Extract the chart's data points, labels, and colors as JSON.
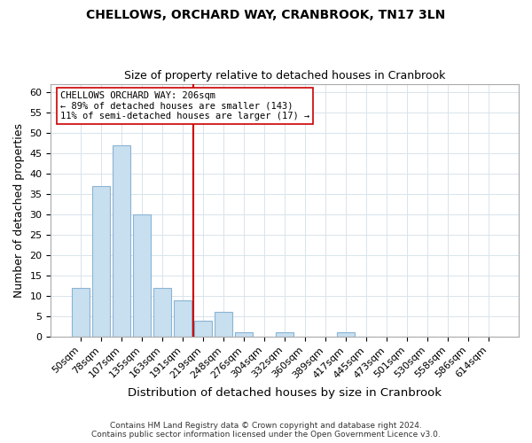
{
  "title": "CHELLOWS, ORCHARD WAY, CRANBROOK, TN17 3LN",
  "subtitle": "Size of property relative to detached houses in Cranbrook",
  "xlabel": "Distribution of detached houses by size in Cranbrook",
  "ylabel": "Number of detached properties",
  "categories": [
    "50sqm",
    "78sqm",
    "107sqm",
    "135sqm",
    "163sqm",
    "191sqm",
    "219sqm",
    "248sqm",
    "276sqm",
    "304sqm",
    "332sqm",
    "360sqm",
    "389sqm",
    "417sqm",
    "445sqm",
    "473sqm",
    "501sqm",
    "530sqm",
    "558sqm",
    "586sqm",
    "614sqm"
  ],
  "values": [
    12,
    37,
    47,
    30,
    12,
    9,
    4,
    6,
    1,
    0,
    1,
    0,
    0,
    1,
    0,
    0,
    0,
    0,
    0,
    0,
    0
  ],
  "bar_color": "#c8dff0",
  "bar_edge_color": "#8ab4d4",
  "vline_color": "#cc0000",
  "annotation_line1": "CHELLOWS ORCHARD WAY: 206sqm",
  "annotation_line2": "← 89% of detached houses are smaller (143)",
  "annotation_line3": "11% of semi-detached houses are larger (17) →",
  "annotation_box_color": "#ffffff",
  "annotation_box_edge": "#cc0000",
  "ylim": [
    0,
    62
  ],
  "yticks": [
    0,
    5,
    10,
    15,
    20,
    25,
    30,
    35,
    40,
    45,
    50,
    55,
    60
  ],
  "footer_line1": "Contains HM Land Registry data © Crown copyright and database right 2024.",
  "footer_line2": "Contains public sector information licensed under the Open Government Licence v3.0.",
  "bg_color": "#ffffff",
  "plot_bg_color": "#ffffff",
  "grid_color": "#d8e4ec"
}
